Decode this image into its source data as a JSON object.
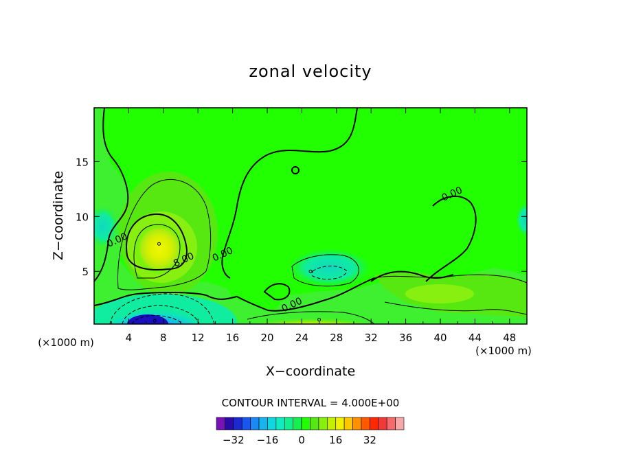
{
  "chart_data": {
    "type": "contour",
    "title": "zonal velocity",
    "xlabel": "X−coordinate",
    "ylabel": "Z−coordinate",
    "x_unit_label": "(×1000 m)",
    "y_unit_label": "(×1000 m)",
    "xlim": [
      0,
      50
    ],
    "ylim": [
      0.2,
      19.9
    ],
    "x_ticks": [
      4,
      8,
      12,
      16,
      20,
      24,
      28,
      32,
      36,
      40,
      44,
      48
    ],
    "y_ticks": [
      5,
      10,
      15
    ],
    "contour_interval_text": "CONTOUR INTERVAL = 4.000E+00",
    "contour_labels": [
      {
        "text": "0.00",
        "x": 2.8,
        "y": 7.6
      },
      {
        "text": "8.00",
        "x": 10.5,
        "y": 5.8
      },
      {
        "text": "0.00",
        "x": 15.0,
        "y": 6.3
      },
      {
        "text": "0.00",
        "x": 23.0,
        "y": 1.7
      },
      {
        "text": "0.00",
        "x": 41.5,
        "y": 11.8
      }
    ],
    "features": [
      {
        "kind": "max",
        "x": 7.5,
        "y": 7.5,
        "value": 16
      },
      {
        "kind": "min",
        "x": 7.0,
        "y": 0.5,
        "value": -28
      },
      {
        "kind": "min",
        "x": 25.0,
        "y": 5.0,
        "value": -8
      },
      {
        "kind": "max",
        "x": 26.0,
        "y": 0.6,
        "value": 16
      }
    ],
    "colorbar": {
      "ticks": [
        -32,
        -16,
        0,
        16,
        32
      ],
      "tick_labels": [
        "−32",
        "−16",
        "0",
        "16",
        "32"
      ],
      "colors": [
        "#7a10b8",
        "#2a0aa8",
        "#1a2ad0",
        "#1a55f0",
        "#1a88f5",
        "#17b4f0",
        "#10d8e0",
        "#10ecc0",
        "#10f090",
        "#14f050",
        "#22ff00",
        "#56e810",
        "#88f010",
        "#c4f000",
        "#f0f000",
        "#ffc800",
        "#ff9000",
        "#ff5a00",
        "#ff2800",
        "#f03a3a",
        "#f56a6a",
        "#f7a8a8"
      ]
    }
  }
}
